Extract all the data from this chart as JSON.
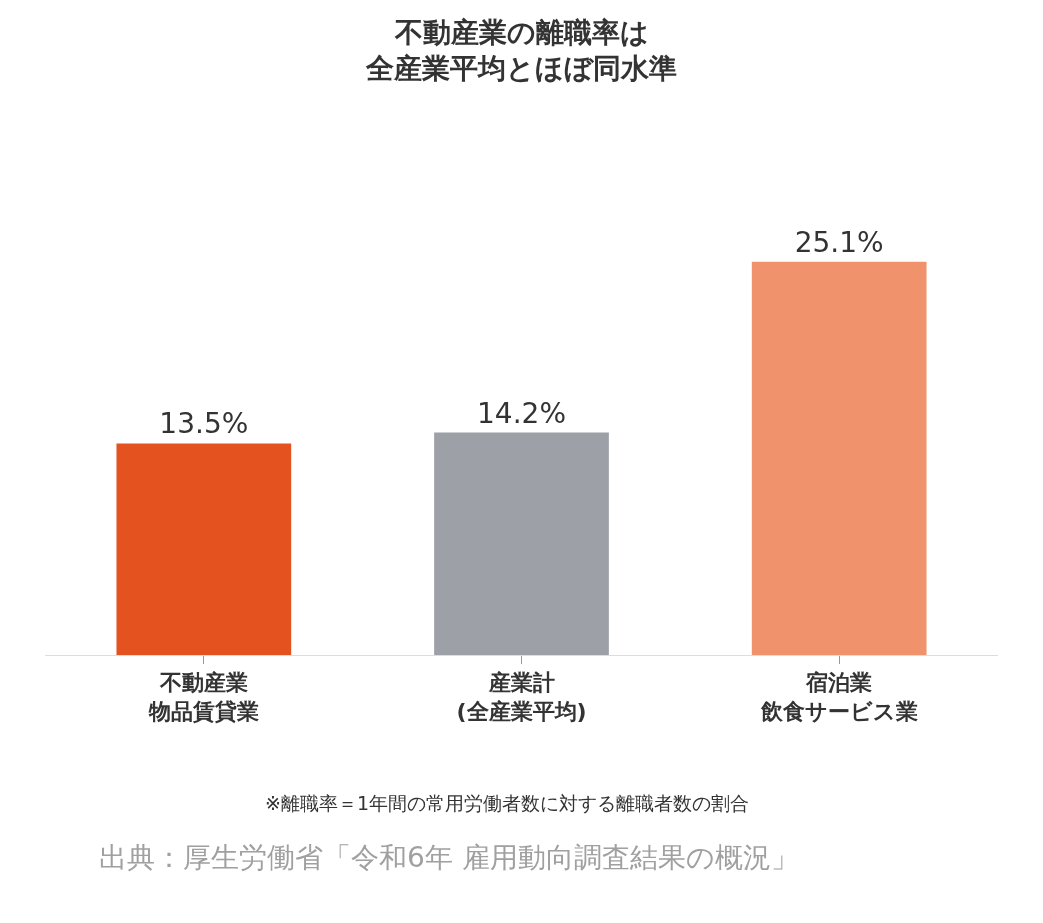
{
  "chart_data": {
    "type": "bar",
    "title": "不動産業の離職率は全産業平均とほぼ同水準",
    "categories": [
      "不動産業物品賃貸業",
      "産業計(全産業平均)",
      "宿泊業飲食サービス業"
    ],
    "values": [
      13.5,
      14.2,
      25.1
    ],
    "colors": [
      "#e4521f",
      "#9da0a7",
      "#f0936d"
    ],
    "value_labels": [
      "13.5%",
      "14.2%",
      "25.1%"
    ],
    "annotations": [
      "※離職率＝1年間の常用労働者数に対する離職者数の割合",
      "出典：厚生労働省「令和6年 雇用動向調査結果の概況」"
    ]
  }
}
